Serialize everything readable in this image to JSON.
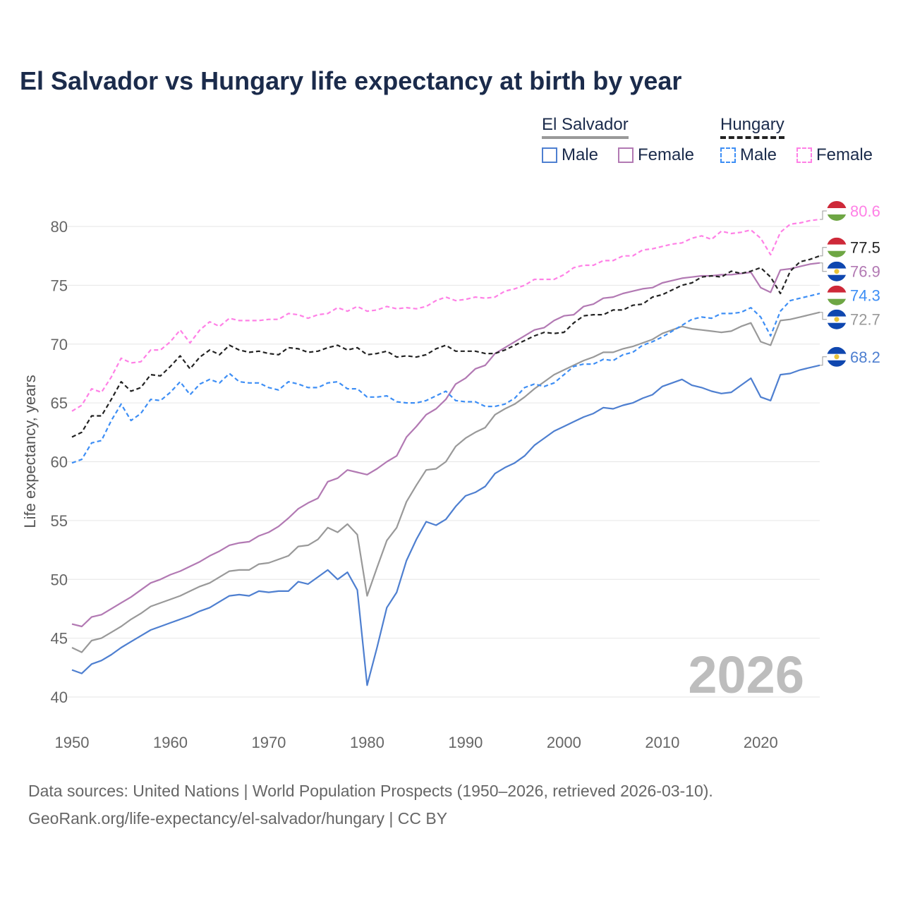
{
  "title": "El Salvador vs Hungary life expectancy at birth by year",
  "legend": {
    "groups": [
      {
        "name": "El Salvador",
        "items": [
          {
            "label": "Male"
          },
          {
            "label": "Female"
          }
        ]
      },
      {
        "name": "Hungary",
        "items": [
          {
            "label": "Male"
          },
          {
            "label": "Female"
          }
        ]
      }
    ]
  },
  "footer": {
    "line1": "Data sources: United Nations | World Population Prospects (1950–2026, retrieved 2026-03-10).",
    "line2": "GeoRank.org/life-expectancy/el-salvador/hungary | CC BY"
  },
  "chart_data": {
    "type": "line",
    "title": "El Salvador vs Hungary life expectancy at birth by year",
    "xlabel": "",
    "ylabel": "Life expectancy, years",
    "xlim": [
      1950,
      2026
    ],
    "ylim": [
      40,
      82
    ],
    "x_ticks": [
      1950,
      1960,
      1970,
      1980,
      1990,
      2000,
      2010,
      2020
    ],
    "y_ticks": [
      40,
      45,
      50,
      55,
      60,
      65,
      70,
      75,
      80
    ],
    "grid": true,
    "legend_position": "top-right",
    "year_annotation": "2026",
    "x_start": 1950,
    "series": [
      {
        "name": "Hungary Female",
        "country": "Hungary",
        "color": "#ff80e6",
        "dash": true,
        "flag": "hungary",
        "end_label": "80.6",
        "values": [
          64.3,
          64.8,
          66.2,
          65.9,
          67.2,
          68.8,
          68.4,
          68.5,
          69.5,
          69.5,
          70.2,
          71.2,
          70.1,
          71.2,
          71.9,
          71.5,
          72.2,
          72.0,
          72.0,
          72.0,
          72.1,
          72.1,
          72.6,
          72.5,
          72.2,
          72.5,
          72.6,
          73.1,
          72.8,
          73.2,
          72.8,
          72.9,
          73.2,
          73.0,
          73.1,
          73.0,
          73.2,
          73.7,
          74.0,
          73.7,
          73.8,
          74.0,
          73.9,
          74.0,
          74.5,
          74.7,
          75.0,
          75.5,
          75.5,
          75.5,
          75.9,
          76.5,
          76.7,
          76.7,
          77.1,
          77.1,
          77.5,
          77.5,
          78.0,
          78.1,
          78.3,
          78.5,
          78.6,
          79.0,
          79.2,
          78.9,
          79.6,
          79.4,
          79.5,
          79.7,
          79.0,
          77.6,
          79.5,
          80.2,
          80.3,
          80.5,
          80.6
        ]
      },
      {
        "name": "Hungary",
        "country": "Hungary",
        "color": "#222222",
        "dash": true,
        "flag": "hungary",
        "end_label": "77.5",
        "values": [
          62.1,
          62.5,
          63.9,
          63.9,
          65.3,
          66.8,
          66.0,
          66.3,
          67.4,
          67.3,
          68.1,
          69.0,
          67.9,
          68.9,
          69.5,
          69.1,
          69.9,
          69.5,
          69.3,
          69.4,
          69.2,
          69.1,
          69.7,
          69.6,
          69.3,
          69.4,
          69.7,
          69.9,
          69.5,
          69.7,
          69.1,
          69.2,
          69.4,
          68.9,
          69.0,
          68.9,
          69.1,
          69.6,
          69.9,
          69.4,
          69.4,
          69.4,
          69.2,
          69.2,
          69.5,
          69.9,
          70.3,
          70.7,
          71.0,
          70.9,
          71.0,
          71.8,
          72.4,
          72.5,
          72.5,
          72.9,
          72.9,
          73.3,
          73.4,
          74.0,
          74.2,
          74.6,
          75.0,
          75.2,
          75.7,
          75.8,
          75.7,
          76.2,
          76.0,
          76.2,
          76.5,
          75.7,
          74.3,
          76.2,
          77.0,
          77.2,
          77.5
        ]
      },
      {
        "name": "El Salvador Female",
        "country": "El Salvador",
        "color": "#b279b3",
        "dash": false,
        "flag": "el-salvador",
        "end_label": "76.9",
        "values": [
          46.2,
          46.0,
          46.8,
          47.0,
          47.5,
          48.0,
          48.5,
          49.1,
          49.7,
          50.0,
          50.4,
          50.7,
          51.1,
          51.5,
          52.0,
          52.4,
          52.9,
          53.1,
          53.2,
          53.7,
          54.0,
          54.5,
          55.2,
          56.0,
          56.5,
          56.9,
          58.3,
          58.6,
          59.3,
          59.1,
          58.9,
          59.4,
          60.0,
          60.5,
          62.1,
          63.0,
          64.0,
          64.5,
          65.3,
          66.6,
          67.1,
          67.9,
          68.2,
          69.2,
          69.7,
          70.2,
          70.7,
          71.2,
          71.4,
          72.0,
          72.4,
          72.5,
          73.2,
          73.4,
          73.9,
          74.0,
          74.3,
          74.5,
          74.7,
          74.8,
          75.2,
          75.4,
          75.6,
          75.7,
          75.8,
          75.8,
          75.9,
          75.9,
          76.0,
          76.1,
          74.8,
          74.4,
          76.3,
          76.4,
          76.6,
          76.8,
          76.9
        ]
      },
      {
        "name": "Hungary Male",
        "country": "Hungary",
        "color": "#3d8ef5",
        "dash": true,
        "flag": "hungary",
        "end_label": "74.3",
        "values": [
          59.9,
          60.2,
          61.6,
          61.8,
          63.5,
          64.9,
          63.5,
          64.1,
          65.3,
          65.2,
          65.9,
          66.8,
          65.7,
          66.6,
          67.0,
          66.7,
          67.5,
          66.8,
          66.7,
          66.7,
          66.3,
          66.1,
          66.8,
          66.6,
          66.3,
          66.3,
          66.7,
          66.8,
          66.2,
          66.2,
          65.5,
          65.5,
          65.6,
          65.1,
          65.0,
          65.0,
          65.2,
          65.6,
          66.0,
          65.2,
          65.1,
          65.1,
          64.7,
          64.7,
          64.9,
          65.4,
          66.3,
          66.6,
          66.4,
          66.7,
          67.4,
          68.1,
          68.3,
          68.3,
          68.7,
          68.6,
          69.1,
          69.3,
          69.9,
          70.2,
          70.6,
          71.1,
          71.6,
          72.1,
          72.3,
          72.2,
          72.6,
          72.6,
          72.7,
          73.1,
          72.3,
          70.7,
          72.8,
          73.7,
          73.9,
          74.1,
          74.3
        ]
      },
      {
        "name": "El Salvador",
        "country": "El Salvador",
        "color": "#999999",
        "dash": false,
        "flag": "el-salvador",
        "end_label": "72.7",
        "values": [
          44.2,
          43.8,
          44.8,
          45.0,
          45.5,
          46.0,
          46.6,
          47.1,
          47.7,
          48.0,
          48.3,
          48.6,
          49.0,
          49.4,
          49.7,
          50.2,
          50.7,
          50.8,
          50.8,
          51.3,
          51.4,
          51.7,
          52.0,
          52.8,
          52.9,
          53.4,
          54.4,
          54.0,
          54.7,
          53.8,
          48.6,
          51.0,
          53.3,
          54.4,
          56.6,
          58.0,
          59.3,
          59.4,
          60.0,
          61.3,
          62.0,
          62.5,
          62.9,
          64.0,
          64.5,
          64.9,
          65.5,
          66.2,
          66.8,
          67.4,
          67.8,
          68.2,
          68.6,
          68.9,
          69.3,
          69.3,
          69.6,
          69.8,
          70.1,
          70.4,
          70.9,
          71.2,
          71.5,
          71.3,
          71.2,
          71.1,
          71.0,
          71.1,
          71.5,
          71.8,
          70.2,
          69.9,
          72.0,
          72.1,
          72.3,
          72.5,
          72.7
        ]
      },
      {
        "name": "El Salvador Male",
        "country": "El Salvador",
        "color": "#4e7fd0",
        "dash": false,
        "flag": "el-salvador",
        "end_label": "68.2",
        "values": [
          42.3,
          42.0,
          42.8,
          43.1,
          43.6,
          44.2,
          44.7,
          45.2,
          45.7,
          46.0,
          46.3,
          46.6,
          46.9,
          47.3,
          47.6,
          48.1,
          48.6,
          48.7,
          48.6,
          49.0,
          48.9,
          49.0,
          49.0,
          49.8,
          49.6,
          50.2,
          50.8,
          50.0,
          50.6,
          49.1,
          41.0,
          44.2,
          47.6,
          48.9,
          51.6,
          53.4,
          54.9,
          54.6,
          55.1,
          56.2,
          57.1,
          57.4,
          57.9,
          59.0,
          59.5,
          59.9,
          60.5,
          61.4,
          62.0,
          62.6,
          63.0,
          63.4,
          63.8,
          64.1,
          64.6,
          64.5,
          64.8,
          65.0,
          65.4,
          65.7,
          66.4,
          66.7,
          67.0,
          66.5,
          66.3,
          66.0,
          65.8,
          65.9,
          66.5,
          67.1,
          65.5,
          65.2,
          67.4,
          67.5,
          67.8,
          68.0,
          68.2
        ]
      }
    ]
  }
}
